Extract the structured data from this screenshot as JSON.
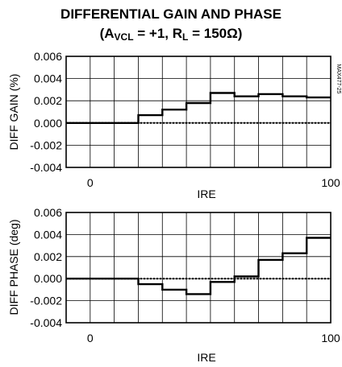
{
  "chart_data": [
    {
      "type": "line",
      "title": "DIFFERENTIAL GAIN AND PHASE",
      "subtitle": {
        "prefix": "(A",
        "sub1": "VCL",
        "middle": " = +1, R",
        "sub2": "L",
        "suffix": " = 150Ω)"
      },
      "side_label": "MAX477-25",
      "xlabel": "IRE",
      "ylabel": "DIFF GAIN (%)",
      "xlim": [
        -10,
        100
      ],
      "ylim": [
        -0.004,
        0.006
      ],
      "x_ticks": [
        "0",
        "100"
      ],
      "y_ticks": [
        "0.006",
        "0.004",
        "0.002",
        "0.000",
        "-0.002",
        "-0.004"
      ],
      "grid": true,
      "series": [
        {
          "x": [
            -10,
            10,
            20,
            30,
            40,
            50,
            60,
            70,
            80,
            90,
            100
          ],
          "y": [
            0.0,
            0.0,
            0.0007,
            0.0012,
            0.0018,
            0.0027,
            0.0024,
            0.0026,
            0.0024,
            0.0023,
            0.0023
          ]
        }
      ]
    },
    {
      "type": "line",
      "xlabel": "IRE",
      "ylabel": "DIFF PHASE (deg)",
      "xlim": [
        -10,
        100
      ],
      "ylim": [
        -0.004,
        0.006
      ],
      "x_ticks": [
        "0",
        "100"
      ],
      "y_ticks": [
        "0.006",
        "0.004",
        "0.002",
        "0.000",
        "-0.002",
        "-0.004"
      ],
      "grid": true,
      "series": [
        {
          "x": [
            -10,
            10,
            20,
            30,
            40,
            50,
            60,
            70,
            80,
            90,
            100
          ],
          "y": [
            0.0,
            0.0,
            -0.0005,
            -0.001,
            -0.0014,
            -0.0003,
            0.0002,
            0.0017,
            0.0023,
            0.0037,
            0.0037
          ]
        }
      ]
    }
  ]
}
